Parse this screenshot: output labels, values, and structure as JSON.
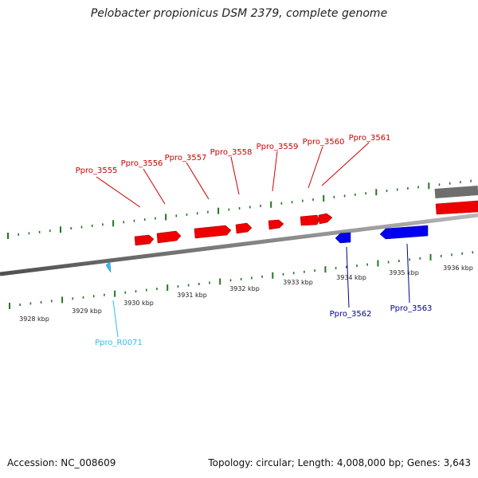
{
  "title": "Pelobacter propionicus DSM 2379, complete genome",
  "accession": "Accession: NC_008609",
  "summary": "Topology: circular; Length: 4,008,000 bp; Genes: 3,643",
  "colors": {
    "forward_gene": "#ee0000",
    "reverse_gene": "#0000dd",
    "rna_gene": "#33bbee",
    "backbone": "#888888",
    "ticks": "#227722",
    "forward_label": "#cc0000",
    "reverse_label": "#000099",
    "rna_label": "#33bbee"
  },
  "scale_labels": [
    "3928 kbp",
    "3929 kbp",
    "3930 kbp",
    "3931 kbp",
    "3932 kbp",
    "3933 kbp",
    "3934 kbp",
    "3935 kbp",
    "3936 kbp"
  ],
  "genes": [
    {
      "name": "Ppro_3555",
      "strand": "forward"
    },
    {
      "name": "Ppro_3556",
      "strand": "forward"
    },
    {
      "name": "Ppro_3557",
      "strand": "forward"
    },
    {
      "name": "Ppro_3558",
      "strand": "forward"
    },
    {
      "name": "Ppro_3559",
      "strand": "forward"
    },
    {
      "name": "Ppro_3560",
      "strand": "forward"
    },
    {
      "name": "Ppro_3561",
      "strand": "forward"
    },
    {
      "name": "Ppro_3562",
      "strand": "reverse"
    },
    {
      "name": "Ppro_3563",
      "strand": "reverse"
    },
    {
      "name": "Ppro_R0071",
      "strand": "rna"
    }
  ]
}
